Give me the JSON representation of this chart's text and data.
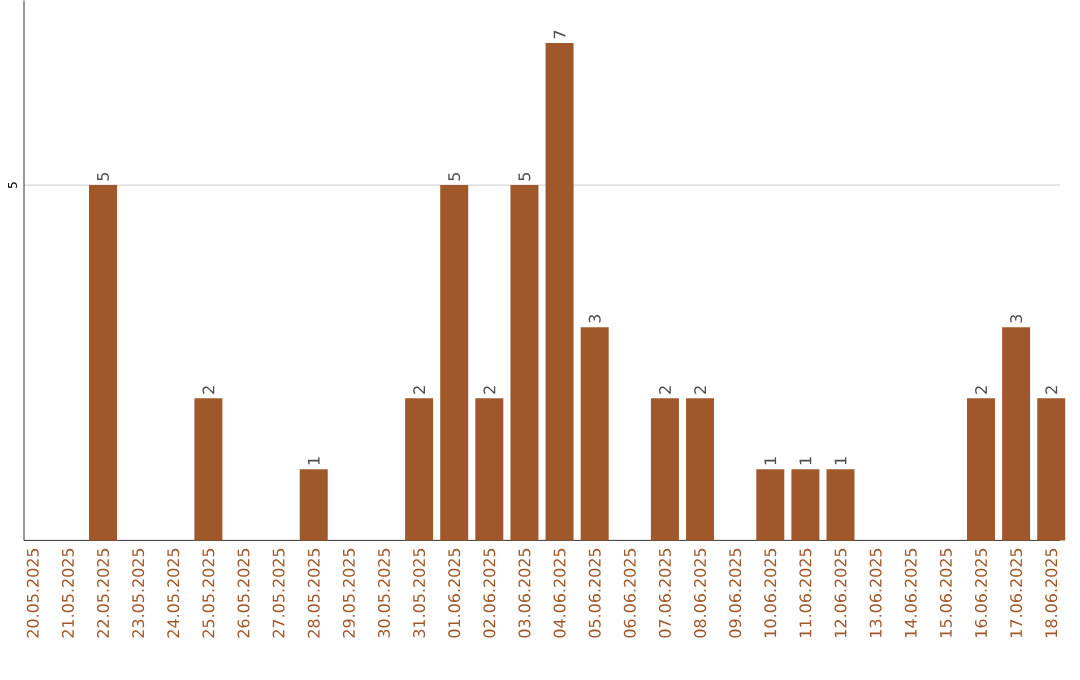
{
  "chart_data": {
    "type": "bar",
    "categories": [
      "20.05.2025",
      "21.05.2025",
      "22.05.2025",
      "23.05.2025",
      "24.05.2025",
      "25.05.2025",
      "26.05.2025",
      "27.05.2025",
      "28.05.2025",
      "29.05.2025",
      "30.05.2025",
      "31.05.2025",
      "01.06.2025",
      "02.06.2025",
      "03.06.2025",
      "04.06.2025",
      "05.06.2025",
      "06.06.2025",
      "07.06.2025",
      "08.06.2025",
      "09.06.2025",
      "10.06.2025",
      "11.06.2025",
      "12.06.2025",
      "13.06.2025",
      "14.06.2025",
      "15.06.2025",
      "16.06.2025",
      "17.06.2025",
      "18.06.2025"
    ],
    "values": [
      0,
      0,
      5,
      0,
      0,
      2,
      0,
      0,
      1,
      0,
      0,
      2,
      5,
      2,
      5,
      7,
      3,
      0,
      2,
      2,
      0,
      1,
      1,
      1,
      0,
      0,
      0,
      2,
      3,
      2
    ],
    "value_labels": [
      null,
      null,
      "5",
      null,
      null,
      "2",
      null,
      null,
      "1",
      null,
      null,
      "2",
      "5",
      "2",
      "5",
      "7",
      "3",
      null,
      "2",
      "2",
      null,
      "1",
      "1",
      "1",
      null,
      null,
      null,
      "2",
      "3",
      "2"
    ],
    "color": "#a0582a",
    "ylim": [
      0,
      7.6
    ],
    "yticks": [
      5
    ],
    "grid": "y"
  }
}
